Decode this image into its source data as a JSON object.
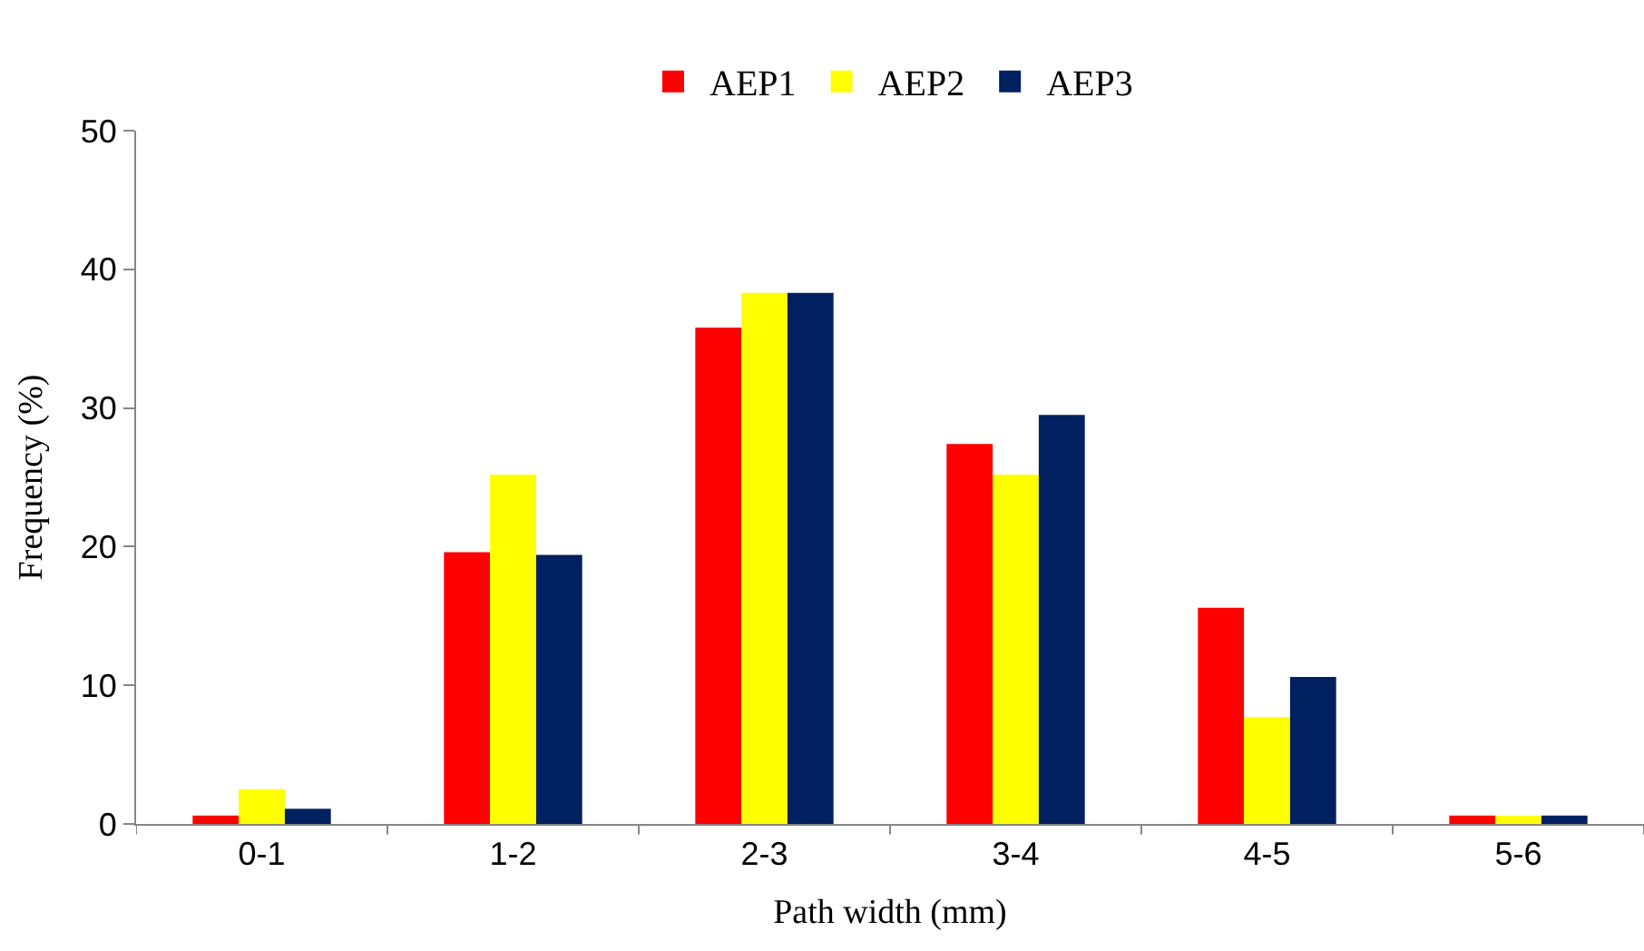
{
  "chart_data": {
    "type": "bar",
    "xlabel": "Path width (mm)",
    "ylabel": "Frequency (%)",
    "categories": [
      "0-1",
      "1-2",
      "2-3",
      "3-4",
      "4-5",
      "5-6"
    ],
    "series": [
      {
        "name": "AEP1",
        "color": "#ff0000",
        "values": [
          0.6,
          19.6,
          35.8,
          27.4,
          15.6,
          0.6
        ]
      },
      {
        "name": "AEP2",
        "color": "#ffff00",
        "values": [
          2.5,
          25.2,
          38.3,
          25.2,
          7.7,
          0.6
        ]
      },
      {
        "name": "AEP3",
        "color": "#002060",
        "values": [
          1.1,
          19.4,
          38.3,
          29.5,
          10.6,
          0.6
        ]
      }
    ],
    "ylim": [
      0,
      50
    ],
    "yticks": [
      0,
      10,
      20,
      30,
      40,
      50
    ],
    "legend": "top"
  }
}
